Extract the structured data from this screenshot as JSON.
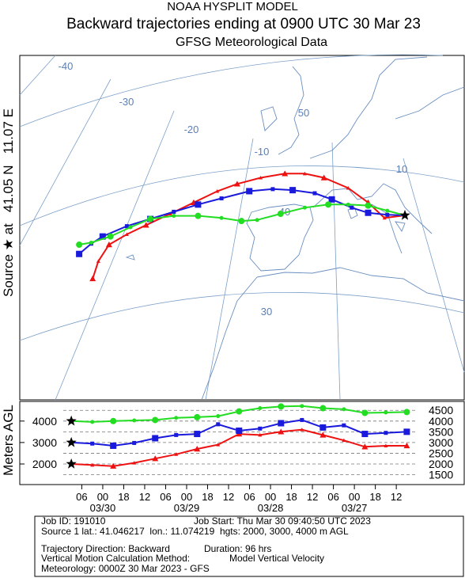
{
  "header": {
    "line1": "NOAA HYSPLIT MODEL",
    "line2": "Backward trajectories ending at 0900 UTC 30 Mar 23",
    "line3": "GFSG Meteorological Data"
  },
  "source_label": "Source ★ at   41.05 N   11.07 E",
  "chart_data": [
    {
      "type": "trajectory_map",
      "graticule_labels": [
        "-40",
        "-30",
        "-20",
        "-10",
        "10",
        "50",
        "40",
        "30"
      ],
      "source": {
        "lon": 11.07,
        "lat": 41.05
      },
      "series": [
        {
          "color": "#ee1111",
          "marker": "triangle",
          "lon": [
            11.07,
            8.2,
            5.9,
            3.1,
            -0.3,
            -3.0,
            -5.8,
            -9.2,
            -12.5,
            -15.3,
            -18.6,
            -21.9,
            -25.3,
            -28.0,
            -30.5,
            -32.0,
            -32.8
          ],
          "lat": [
            41.05,
            40.8,
            42.3,
            43.7,
            44.7,
            45.1,
            45.1,
            44.7,
            44.1,
            43.4,
            42.3,
            41.2,
            40.1,
            39.2,
            38.2,
            36.6,
            34.9
          ]
        },
        {
          "color": "#1a1adc",
          "marker": "square",
          "lon": [
            11.07,
            8.6,
            5.9,
            3.6,
            0.8,
            -1.6,
            -4.7,
            -7.5,
            -10.8,
            -14.7,
            -18.0,
            -21.4,
            -24.7,
            -28.0,
            -31.4,
            -33.0,
            -34.7
          ],
          "lat": [
            41.05,
            41.1,
            41.3,
            41.8,
            42.6,
            43.2,
            43.5,
            43.6,
            43.4,
            42.7,
            42.1,
            41.4,
            40.7,
            40.0,
            39.0,
            38.3,
            37.3
          ]
        },
        {
          "color": "#22dd22",
          "marker": "circle",
          "lon": [
            11.07,
            8.6,
            5.9,
            3.1,
            0.3,
            -3.0,
            -6.4,
            -9.7,
            -11.9,
            -14.7,
            -18.0,
            -21.4,
            -24.7,
            -27.5,
            -30.3,
            -33.0,
            -34.7
          ],
          "lat": [
            41.05,
            41.5,
            42.0,
            42.1,
            42.1,
            41.8,
            41.2,
            40.6,
            40.5,
            40.8,
            41.0,
            41.0,
            40.7,
            39.9,
            39.0,
            38.4,
            38.2
          ]
        }
      ]
    },
    {
      "type": "line",
      "y_label": "Meters AGL",
      "x": [
        0,
        6,
        12,
        18,
        24,
        30,
        36,
        42,
        48,
        54,
        60,
        66,
        72,
        78,
        84,
        90,
        96
      ],
      "xlim": [
        -2.3,
        98.4
      ],
      "xticks": [
        {
          "value": 3,
          "label": "06"
        },
        {
          "value": 9,
          "label": "00"
        },
        {
          "value": 15,
          "label": "18"
        },
        {
          "value": 21,
          "label": "12"
        },
        {
          "value": 27,
          "label": "06"
        },
        {
          "value": 33,
          "label": "00"
        },
        {
          "value": 39,
          "label": "18"
        },
        {
          "value": 45,
          "label": "12"
        },
        {
          "value": 51,
          "label": "06"
        },
        {
          "value": 57,
          "label": "00"
        },
        {
          "value": 63,
          "label": "18"
        },
        {
          "value": 69,
          "label": "12"
        },
        {
          "value": 75,
          "label": "06"
        },
        {
          "value": 81,
          "label": "00"
        },
        {
          "value": 87,
          "label": "18"
        },
        {
          "value": 93,
          "label": "12"
        }
      ],
      "date_labels": [
        {
          "value": 9,
          "label": "03/30"
        },
        {
          "value": 33,
          "label": "03/29"
        },
        {
          "value": 57,
          "label": "03/28"
        },
        {
          "value": 81,
          "label": "03/27"
        }
      ],
      "ylim": [
        1040,
        4915
      ],
      "yticks": [
        4000,
        3000,
        2000
      ],
      "y2lim": [
        1040,
        4915
      ],
      "y2ticks": [
        4500,
        4000,
        3500,
        3000,
        2500,
        2000,
        1500
      ],
      "series": [
        {
          "color": "#ee1111",
          "marker": "triangle",
          "values": [
            2000,
            1950,
            1900,
            2050,
            2250,
            2450,
            2700,
            2900,
            3400,
            3350,
            3500,
            3600,
            3350,
            3100,
            2800,
            2850,
            2850
          ]
        },
        {
          "color": "#1a1adc",
          "marker": "square",
          "values": [
            3000,
            2950,
            2850,
            2980,
            3200,
            3350,
            3400,
            3850,
            3550,
            3650,
            3900,
            4050,
            3700,
            3800,
            3400,
            3450,
            3500
          ]
        },
        {
          "color": "#22dd22",
          "marker": "circle",
          "values": [
            4000,
            3960,
            4000,
            4030,
            4050,
            4150,
            4180,
            4230,
            4450,
            4600,
            4680,
            4700,
            4600,
            4550,
            4380,
            4400,
            4420
          ]
        }
      ]
    }
  ],
  "footer": {
    "job_id": "Job ID: 191010",
    "job_start": "Job Start: Thu Mar 30 09:40:50 UTC 2023",
    "source": "Source 1 lat.: 41.046217  lon.: 11.074219  hgts: 2000, 3000, 4000 m AGL",
    "direction": "Trajectory Direction: Backward",
    "duration": "Duration: 96 hrs",
    "method": "Vertical Motion Calculation Method:",
    "method_value": "Model Vertical Velocity",
    "meteorology": "Meteorology: 0000Z 30 Mar 2023 - GFS"
  }
}
